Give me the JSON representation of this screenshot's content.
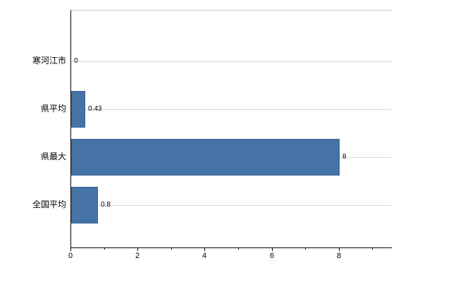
{
  "chart_data": {
    "type": "bar",
    "orientation": "horizontal",
    "title": "",
    "xlabel": "",
    "ylabel": "",
    "categories": [
      "寒河江市",
      "県平均",
      "県最大",
      "全国平均"
    ],
    "values": [
      0,
      0.43,
      8,
      0.8
    ],
    "value_labels": [
      "0",
      "0.43",
      "8",
      "0.8"
    ],
    "xlim": [
      0,
      9.56
    ],
    "xticks_major": [
      0,
      2,
      4,
      6,
      8
    ],
    "xtick_labels": [
      "0",
      "2",
      "4",
      "6",
      "8"
    ],
    "xticks_minor": [
      1,
      3,
      5,
      7,
      9
    ],
    "grid": "horizontal line at each category center",
    "legend": "none",
    "colors": {
      "bar_fill": "#4573a7",
      "bar_border": "#3a6191",
      "gridline": "#d9d9d9",
      "axis": "#000000",
      "background": "#ffffff",
      "frame_top": "#c9c9c9"
    }
  }
}
